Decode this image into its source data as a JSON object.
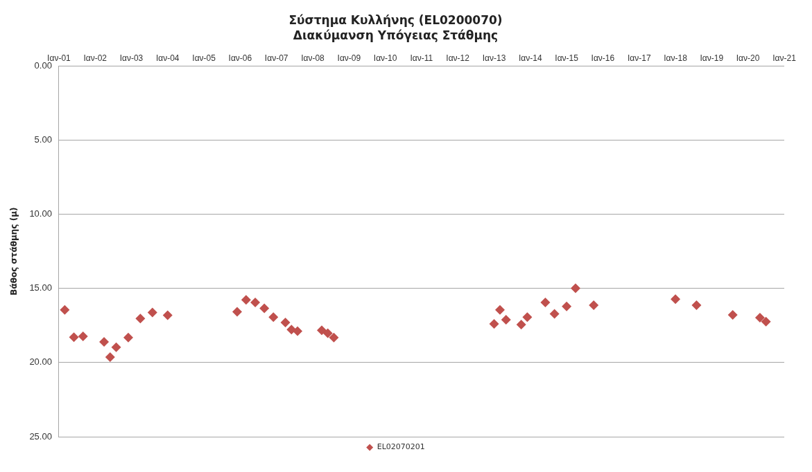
{
  "chart_data": {
    "type": "scatter",
    "title": "Σύστημα Κυλλήνης (EL0200070)",
    "subtitle": "Διακύμανση Υπόγειας Στάθμης",
    "ylabel": "Βάθος στάθμης (μ)",
    "x": [
      "2001-03",
      "2001-06",
      "2001-09",
      "2002-04",
      "2002-06",
      "2002-08",
      "2002-12",
      "2003-04",
      "2003-08",
      "2004-01",
      "2005-12",
      "2006-03",
      "2006-06",
      "2006-09",
      "2006-12",
      "2007-04",
      "2007-06",
      "2007-08",
      "2008-04",
      "2008-06",
      "2008-08",
      "2013-01",
      "2013-03",
      "2013-05",
      "2013-10",
      "2013-12",
      "2014-06",
      "2014-09",
      "2015-01",
      "2015-04",
      "2015-10",
      "2018-01",
      "2018-08",
      "2019-08",
      "2020-05",
      "2020-07"
    ],
    "series": [
      {
        "name": "EL02070201",
        "color": "#c0504d",
        "values": [
          16.45,
          18.29,
          18.23,
          18.61,
          19.64,
          18.97,
          18.32,
          17.03,
          16.63,
          16.81,
          16.58,
          15.77,
          15.95,
          16.34,
          16.94,
          17.3,
          17.78,
          17.89,
          17.83,
          18.02,
          18.32,
          17.39,
          16.45,
          17.12,
          17.44,
          16.94,
          15.95,
          16.72,
          16.22,
          14.99,
          16.13,
          15.73,
          16.13,
          16.79,
          16.97,
          17.24
        ]
      }
    ],
    "xlim": [
      "2001-01",
      "2021-01"
    ],
    "xticks": [
      {
        "value": "2001-01",
        "label": "Ιαν-01"
      },
      {
        "value": "2002-01",
        "label": "Ιαν-02"
      },
      {
        "value": "2003-01",
        "label": "Ιαν-03"
      },
      {
        "value": "2004-01",
        "label": "Ιαν-04"
      },
      {
        "value": "2005-01",
        "label": "Ιαν-05"
      },
      {
        "value": "2006-01",
        "label": "Ιαν-06"
      },
      {
        "value": "2007-01",
        "label": "Ιαν-07"
      },
      {
        "value": "2008-01",
        "label": "Ιαν-08"
      },
      {
        "value": "2009-01",
        "label": "Ιαν-09"
      },
      {
        "value": "2010-01",
        "label": "Ιαν-10"
      },
      {
        "value": "2011-01",
        "label": "Ιαν-11"
      },
      {
        "value": "2012-01",
        "label": "Ιαν-12"
      },
      {
        "value": "2013-01",
        "label": "Ιαν-13"
      },
      {
        "value": "2014-01",
        "label": "Ιαν-14"
      },
      {
        "value": "2015-01",
        "label": "Ιαν-15"
      },
      {
        "value": "2016-01",
        "label": "Ιαν-16"
      },
      {
        "value": "2017-01",
        "label": "Ιαν-17"
      },
      {
        "value": "2018-01",
        "label": "Ιαν-18"
      },
      {
        "value": "2019-01",
        "label": "Ιαν-19"
      },
      {
        "value": "2020-01",
        "label": "Ιαν-20"
      },
      {
        "value": "2021-01",
        "label": "Ιαν-21"
      }
    ],
    "ylim": [
      25,
      0
    ],
    "yticks": [
      {
        "value": 0,
        "label": "0.00"
      },
      {
        "value": 5,
        "label": "5.00"
      },
      {
        "value": 10,
        "label": "10.00"
      },
      {
        "value": 15,
        "label": "15.00"
      },
      {
        "value": 20,
        "label": "20.00"
      },
      {
        "value": 25,
        "label": "25.00"
      }
    ],
    "grid": "y",
    "legend": "bottom",
    "marker": "diamond"
  }
}
